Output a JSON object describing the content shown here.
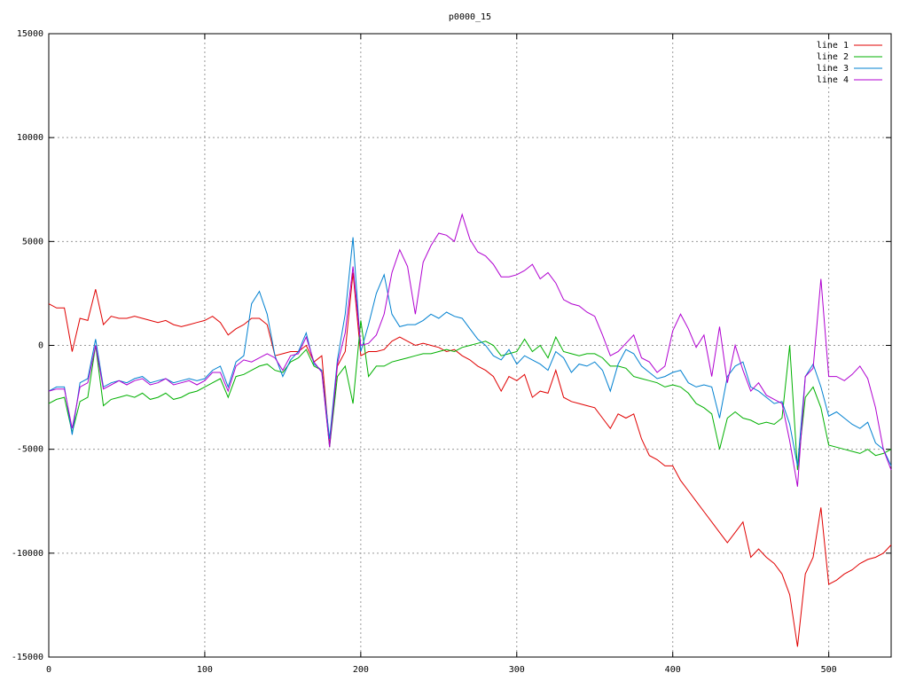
{
  "chart_data": {
    "type": "line",
    "title": "p0000_15",
    "x": [
      0,
      5,
      10,
      15,
      20,
      25,
      30,
      35,
      40,
      45,
      50,
      55,
      60,
      65,
      70,
      75,
      80,
      85,
      90,
      95,
      100,
      105,
      110,
      115,
      120,
      125,
      130,
      135,
      140,
      145,
      150,
      155,
      160,
      165,
      170,
      175,
      180,
      185,
      190,
      195,
      200,
      205,
      210,
      215,
      220,
      225,
      230,
      235,
      240,
      245,
      250,
      255,
      260,
      265,
      270,
      275,
      280,
      285,
      290,
      295,
      300,
      305,
      310,
      315,
      320,
      325,
      330,
      335,
      340,
      345,
      350,
      355,
      360,
      365,
      370,
      375,
      380,
      385,
      390,
      395,
      400,
      405,
      410,
      415,
      420,
      425,
      430,
      435,
      440,
      445,
      450,
      455,
      460,
      465,
      470,
      475,
      480,
      485,
      490,
      495,
      500,
      505,
      510,
      515,
      520,
      525,
      530,
      535,
      540
    ],
    "series": [
      {
        "name": "line 1",
        "color": "#e00000",
        "values": [
          2000,
          1800,
          1800,
          -300,
          1300,
          1200,
          2700,
          1000,
          1400,
          1300,
          1300,
          1400,
          1300,
          1200,
          1100,
          1200,
          1000,
          900,
          1000,
          1100,
          1200,
          1400,
          1100,
          500,
          800,
          1000,
          1300,
          1300,
          1000,
          -500,
          -400,
          -300,
          -300,
          0,
          -800,
          -500,
          -4800,
          -1000,
          -300,
          3500,
          -500,
          -300,
          -300,
          -200,
          200,
          400,
          200,
          0,
          100,
          0,
          -100,
          -300,
          -200,
          -500,
          -700,
          -1000,
          -1200,
          -1500,
          -2200,
          -1500,
          -1700,
          -1400,
          -2500,
          -2200,
          -2300,
          -1200,
          -2500,
          -2700,
          -2800,
          -2900,
          -3000,
          -3500,
          -4000,
          -3300,
          -3500,
          -3300,
          -4500,
          -5300,
          -5500,
          -5800,
          -5800,
          -6500,
          -7000,
          -7500,
          -8000,
          -8500,
          -9000,
          -9500,
          -9000,
          -8500,
          -10200,
          -9800,
          -10200,
          -10500,
          -11000,
          -12000,
          -14500,
          -11000,
          -10200,
          -7800,
          -11500,
          -11300,
          -11000,
          -10800,
          -10500,
          -10300,
          -10200,
          -10000,
          -9600
        ]
      },
      {
        "name": "line 2",
        "color": "#00b000",
        "values": [
          -2800,
          -2600,
          -2500,
          -4200,
          -2700,
          -2500,
          0,
          -2900,
          -2600,
          -2500,
          -2400,
          -2500,
          -2300,
          -2600,
          -2500,
          -2300,
          -2600,
          -2500,
          -2300,
          -2200,
          -2000,
          -1800,
          -1600,
          -2500,
          -1500,
          -1400,
          -1200,
          -1000,
          -900,
          -1200,
          -1300,
          -800,
          -600,
          -200,
          -1000,
          -1200,
          -4900,
          -1500,
          -1000,
          -2800,
          1200,
          -1500,
          -1000,
          -1000,
          -800,
          -700,
          -600,
          -500,
          -400,
          -400,
          -300,
          -200,
          -300,
          -100,
          0,
          100,
          200,
          0,
          -500,
          -400,
          -300,
          300,
          -300,
          0,
          -600,
          400,
          -300,
          -400,
          -500,
          -400,
          -400,
          -600,
          -1000,
          -1000,
          -1100,
          -1500,
          -1600,
          -1700,
          -1800,
          -2000,
          -1900,
          -2000,
          -2300,
          -2800,
          -3000,
          -3300,
          -5000,
          -3500,
          -3200,
          -3500,
          -3600,
          -3800,
          -3700,
          -3800,
          -3500,
          0,
          -6000,
          -2500,
          -2000,
          -3000,
          -4800,
          -4900,
          -5000,
          -5100,
          -5200,
          -5000,
          -5300,
          -5200,
          -5000
        ]
      },
      {
        "name": "line 3",
        "color": "#0080d0",
        "values": [
          -2200,
          -2000,
          -2000,
          -4300,
          -1800,
          -1600,
          300,
          -2000,
          -1800,
          -1700,
          -1800,
          -1600,
          -1500,
          -1800,
          -1700,
          -1600,
          -1800,
          -1700,
          -1600,
          -1700,
          -1600,
          -1200,
          -1000,
          -2000,
          -800,
          -500,
          2000,
          2600,
          1500,
          -500,
          -1500,
          -700,
          -300,
          600,
          -900,
          -1200,
          -4500,
          -700,
          1500,
          5200,
          -300,
          1000,
          2500,
          3400,
          1500,
          900,
          1000,
          1000,
          1200,
          1500,
          1300,
          1600,
          1400,
          1300,
          800,
          300,
          0,
          -500,
          -700,
          -200,
          -900,
          -500,
          -700,
          -900,
          -1200,
          -300,
          -600,
          -1300,
          -900,
          -1000,
          -800,
          -1200,
          -2200,
          -900,
          -200,
          -400,
          -1000,
          -1300,
          -1600,
          -1500,
          -1300,
          -1200,
          -1800,
          -2000,
          -1900,
          -2000,
          -3500,
          -1500,
          -1000,
          -800,
          -2000,
          -2200,
          -2500,
          -2800,
          -2700,
          -3800,
          -5800,
          -1500,
          -900,
          -2000,
          -3400,
          -3200,
          -3500,
          -3800,
          -4000,
          -3700,
          -4700,
          -5000,
          -5800
        ]
      },
      {
        "name": "line 4",
        "color": "#b000d0",
        "values": [
          -2200,
          -2100,
          -2100,
          -4000,
          -2000,
          -1800,
          0,
          -2100,
          -1900,
          -1700,
          -1900,
          -1700,
          -1600,
          -1900,
          -1800,
          -1600,
          -1900,
          -1800,
          -1700,
          -1900,
          -1700,
          -1300,
          -1300,
          -2200,
          -1000,
          -700,
          -800,
          -600,
          -400,
          -600,
          -1200,
          -500,
          -400,
          400,
          -800,
          -1300,
          -4900,
          -900,
          600,
          3800,
          0,
          100,
          500,
          1500,
          3500,
          4600,
          3800,
          1500,
          4000,
          4800,
          5400,
          5300,
          5000,
          6300,
          5100,
          4500,
          4300,
          3900,
          3300,
          3300,
          3400,
          3600,
          3900,
          3200,
          3500,
          3000,
          2200,
          2000,
          1900,
          1600,
          1400,
          500,
          -500,
          -300,
          100,
          500,
          -600,
          -800,
          -1300,
          -1000,
          700,
          1500,
          800,
          -100,
          500,
          -1500,
          900,
          -1800,
          0,
          -1200,
          -2200,
          -1800,
          -2400,
          -2600,
          -2800,
          -4600,
          -6800,
          -1500,
          -1100,
          3200,
          -1500,
          -1500,
          -1700,
          -1400,
          -1000,
          -1600,
          -3000,
          -5000,
          -6000
        ]
      }
    ],
    "xlim": [
      0,
      540
    ],
    "ylim": [
      -15000,
      15000
    ],
    "xticks": [
      0,
      100,
      200,
      300,
      400,
      500
    ],
    "yticks": [
      -15000,
      -10000,
      -5000,
      0,
      5000,
      10000,
      15000
    ],
    "grid": true,
    "legend": "top-right"
  }
}
